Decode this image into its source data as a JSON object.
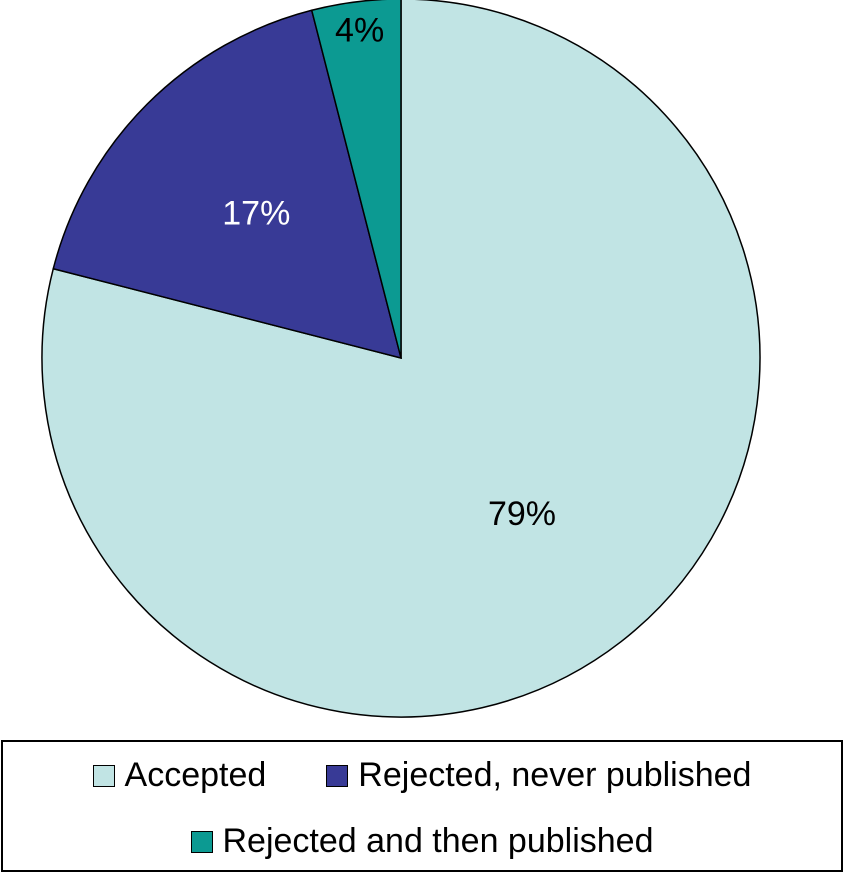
{
  "chart_data": {
    "type": "pie",
    "slices": [
      {
        "name": "Accepted",
        "value": 79,
        "label": "79%",
        "color": "#c1e4e4",
        "label_color": "#000000"
      },
      {
        "name": "Rejected, never published",
        "value": 17,
        "label": "17%",
        "color": "#383a96",
        "label_color": "#ffffff"
      },
      {
        "name": "Rejected and then published",
        "value": 4,
        "label": "4%",
        "color": "#0c9a92",
        "label_color": "#000000"
      }
    ],
    "start": "12 o'clock",
    "direction": "clockwise",
    "legend": {
      "placement": "bottom"
    }
  }
}
